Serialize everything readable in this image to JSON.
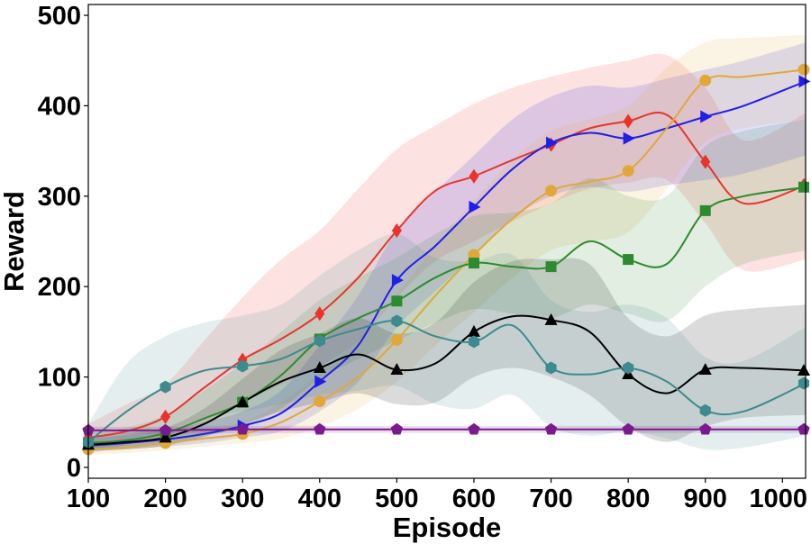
{
  "chart_data": {
    "type": "line",
    "title": "",
    "xlabel": "Episode",
    "ylabel": "Reward",
    "xlim": [
      100,
      1030
    ],
    "ylim": [
      -12,
      512
    ],
    "xticks": [
      100,
      200,
      300,
      400,
      500,
      600,
      700,
      800,
      900,
      1000
    ],
    "xtick_labels": [
      "100",
      "200",
      "300",
      "400",
      "500",
      "600",
      "700",
      "800",
      "900",
      "1000"
    ],
    "yticks": [
      0,
      100,
      200,
      300,
      400,
      500
    ],
    "ytick_labels": [
      "0",
      "100",
      "200",
      "300",
      "400",
      "500"
    ],
    "grid": false,
    "legend": "none",
    "series": [
      {
        "name": "red-diamond",
        "color": "#e8342b",
        "marker": "diamond",
        "x": [
          100,
          150,
          200,
          250,
          300,
          350,
          400,
          450,
          500,
          550,
          600,
          650,
          700,
          750,
          800,
          850,
          900,
          950,
          1030
        ],
        "values": [
          33,
          40,
          56,
          88,
          119,
          142,
          170,
          210,
          262,
          306,
          322,
          340,
          357,
          375,
          383,
          390,
          338,
          292,
          312
        ],
        "lower": [
          20,
          25,
          35,
          50,
          72,
          92,
          112,
          140,
          188,
          228,
          250,
          272,
          292,
          308,
          315,
          318,
          270,
          218,
          230
        ],
        "upper": [
          48,
          70,
          92,
          140,
          188,
          230,
          262,
          308,
          352,
          378,
          402,
          420,
          432,
          442,
          450,
          456,
          420,
          362,
          392
        ]
      },
      {
        "name": "blue-triangle-right",
        "color": "#1f1fe6",
        "marker": "triangle-right",
        "x": [
          100,
          150,
          200,
          250,
          300,
          350,
          400,
          450,
          500,
          550,
          600,
          650,
          700,
          750,
          800,
          850,
          900,
          950,
          1030
        ],
        "values": [
          24,
          27,
          31,
          37,
          46,
          60,
          95,
          135,
          207,
          245,
          288,
          330,
          359,
          370,
          364,
          375,
          388,
          400,
          427
        ],
        "lower": [
          18,
          20,
          23,
          27,
          33,
          40,
          62,
          95,
          155,
          195,
          235,
          275,
          300,
          310,
          305,
          312,
          318,
          325,
          345
        ],
        "upper": [
          32,
          36,
          41,
          50,
          62,
          85,
          135,
          190,
          262,
          305,
          345,
          385,
          410,
          422,
          420,
          430,
          440,
          450,
          470
        ]
      },
      {
        "name": "gold-circle",
        "color": "#e0a83a",
        "marker": "circle",
        "x": [
          100,
          150,
          200,
          250,
          300,
          350,
          400,
          450,
          500,
          550,
          600,
          650,
          700,
          750,
          800,
          850,
          900,
          950,
          1030
        ],
        "values": [
          20,
          22,
          27,
          32,
          37,
          50,
          73,
          100,
          141,
          190,
          235,
          275,
          306,
          316,
          328,
          375,
          428,
          432,
          440
        ],
        "lower": [
          14,
          16,
          19,
          23,
          27,
          32,
          45,
          65,
          95,
          135,
          172,
          210,
          240,
          250,
          260,
          308,
          360,
          375,
          385
        ],
        "upper": [
          28,
          30,
          36,
          42,
          50,
          72,
          105,
          142,
          192,
          245,
          295,
          340,
          372,
          385,
          400,
          442,
          470,
          475,
          478
        ]
      },
      {
        "name": "green-square",
        "color": "#2e8a2e",
        "marker": "square",
        "x": [
          100,
          150,
          200,
          250,
          300,
          350,
          400,
          450,
          500,
          550,
          600,
          650,
          700,
          750,
          800,
          850,
          900,
          950,
          1030
        ],
        "values": [
          27,
          30,
          38,
          54,
          72,
          102,
          142,
          165,
          184,
          210,
          226,
          222,
          222,
          250,
          230,
          225,
          284,
          300,
          310
        ],
        "lower": [
          20,
          22,
          26,
          34,
          45,
          65,
          98,
          120,
          140,
          160,
          175,
          170,
          165,
          180,
          170,
          162,
          200,
          225,
          240
        ],
        "upper": [
          38,
          44,
          58,
          85,
          115,
          150,
          185,
          210,
          232,
          258,
          278,
          282,
          292,
          320,
          300,
          300,
          355,
          372,
          385
        ]
      },
      {
        "name": "black-triangle-up",
        "color": "#000000",
        "marker": "triangle-up",
        "x": [
          100,
          150,
          200,
          250,
          300,
          350,
          400,
          450,
          500,
          550,
          600,
          650,
          700,
          750,
          800,
          850,
          900,
          950,
          1030
        ],
        "values": [
          25,
          28,
          33,
          48,
          72,
          95,
          110,
          125,
          108,
          115,
          150,
          167,
          163,
          150,
          103,
          82,
          108,
          110,
          107
        ],
        "lower": [
          18,
          20,
          24,
          34,
          48,
          62,
          72,
          82,
          70,
          72,
          100,
          110,
          100,
          80,
          45,
          28,
          45,
          55,
          58
        ],
        "upper": [
          34,
          38,
          44,
          65,
          98,
          130,
          148,
          165,
          148,
          160,
          205,
          228,
          230,
          225,
          165,
          145,
          168,
          175,
          180
        ]
      },
      {
        "name": "teal-hexagon",
        "color": "#3e8a8e",
        "marker": "hexagon",
        "x": [
          100,
          150,
          200,
          250,
          300,
          350,
          400,
          450,
          500,
          550,
          600,
          650,
          700,
          750,
          800,
          850,
          900,
          950,
          1030
        ],
        "values": [
          28,
          62,
          89,
          107,
          112,
          120,
          140,
          153,
          162,
          145,
          139,
          157,
          110,
          103,
          110,
          95,
          63,
          62,
          93
        ],
        "lower": [
          15,
          25,
          40,
          55,
          62,
          70,
          80,
          85,
          90,
          70,
          65,
          80,
          45,
          35,
          40,
          32,
          20,
          22,
          35
        ],
        "upper": [
          48,
          115,
          145,
          160,
          168,
          180,
          212,
          240,
          258,
          232,
          228,
          235,
          185,
          172,
          180,
          165,
          122,
          118,
          155
        ]
      },
      {
        "name": "purple-pentagon",
        "color": "#7b1a8c",
        "marker": "pentagon",
        "x": [
          100,
          200,
          300,
          400,
          500,
          600,
          700,
          800,
          900,
          1030
        ],
        "values": [
          41,
          41,
          42,
          42,
          42,
          42,
          42,
          42,
          42,
          42
        ],
        "lower": [
          37,
          37,
          38,
          38,
          38,
          38,
          38,
          38,
          38,
          38
        ],
        "upper": [
          45,
          45,
          46,
          46,
          46,
          46,
          46,
          46,
          46,
          46
        ]
      }
    ]
  }
}
